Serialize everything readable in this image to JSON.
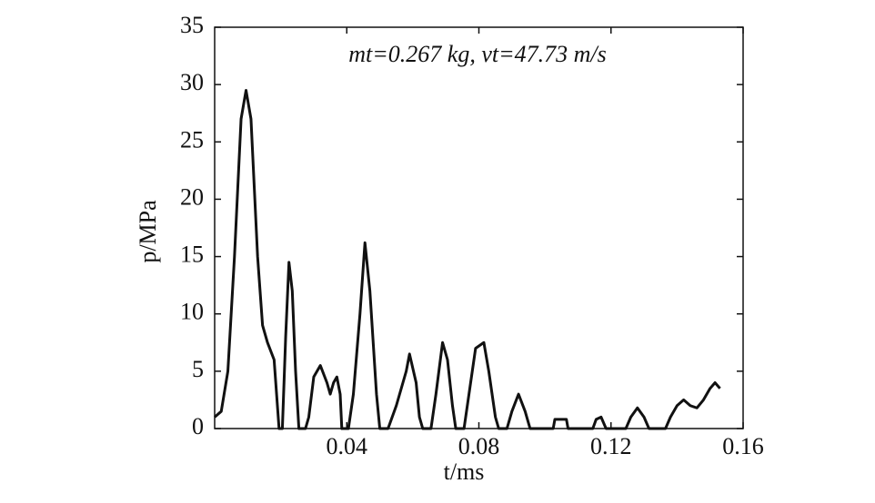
{
  "chart_data": {
    "type": "line",
    "annotation": "mt=0.267 kg, vt=47.73 m/s",
    "xlabel": "t/ms",
    "ylabel": "p/MPa",
    "xlim": [
      0,
      0.16
    ],
    "ylim": [
      0,
      35
    ],
    "xticks": [
      0.04,
      0.08,
      0.12,
      0.16
    ],
    "yticks": [
      0,
      5,
      10,
      15,
      20,
      25,
      30,
      35
    ],
    "series": [
      {
        "color": "#111111",
        "x": [
          0,
          0.002,
          0.004,
          0.006,
          0.008,
          0.0095,
          0.011,
          0.013,
          0.0145,
          0.016,
          0.018,
          0.0195,
          0.0205,
          0.0215,
          0.0225,
          0.0235,
          0.0245,
          0.0255,
          0.0275,
          0.0285,
          0.03,
          0.032,
          0.034,
          0.035,
          0.036,
          0.037,
          0.038,
          0.0385,
          0.0405,
          0.042,
          0.044,
          0.0455,
          0.047,
          0.049,
          0.05,
          0.0525,
          0.055,
          0.058,
          0.059,
          0.061,
          0.062,
          0.063,
          0.0655,
          0.067,
          0.069,
          0.0705,
          0.072,
          0.073,
          0.0755,
          0.077,
          0.079,
          0.0815,
          0.083,
          0.085,
          0.086,
          0.0885,
          0.09,
          0.092,
          0.094,
          0.0955,
          0.1025,
          0.103,
          0.1065,
          0.107,
          0.1145,
          0.1155,
          0.117,
          0.1185,
          0.1245,
          0.126,
          0.128,
          0.13,
          0.1315,
          0.1365,
          0.138,
          0.14,
          0.142,
          0.144,
          0.146,
          0.148,
          0.15,
          0.1515,
          0.153
        ],
        "values": [
          1,
          1.5,
          5,
          15,
          27,
          29.5,
          27,
          15,
          9,
          7.5,
          6,
          0,
          0,
          8,
          14.5,
          12,
          5,
          0,
          0,
          1,
          4.5,
          5.5,
          4,
          3,
          4,
          4.5,
          3,
          0,
          0,
          3,
          10,
          16.2,
          12,
          3,
          0,
          0,
          2,
          5,
          6.5,
          4,
          1,
          0,
          0,
          3,
          7.5,
          6,
          2,
          0,
          0,
          3,
          7,
          7.5,
          5,
          1,
          0,
          0,
          1.5,
          3,
          1.5,
          0,
          0,
          0.8,
          0.8,
          0,
          0,
          0.8,
          1,
          0,
          0,
          1,
          1.8,
          1,
          0,
          0,
          1,
          2,
          2.5,
          2,
          1.8,
          2.5,
          3.5,
          4,
          3.5
        ]
      }
    ]
  }
}
